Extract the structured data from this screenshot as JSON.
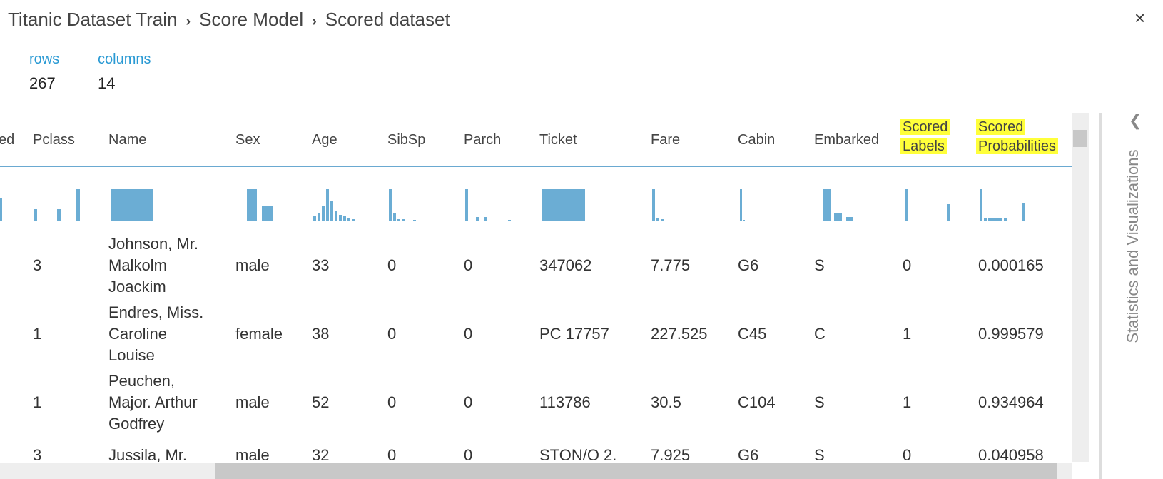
{
  "breadcrumb": [
    "Titanic Dataset Train",
    "Score Model",
    "Scored dataset"
  ],
  "close": "×",
  "stats": [
    {
      "label": "rows",
      "value": "267"
    },
    {
      "label": "columns",
      "value": "14"
    }
  ],
  "table": {
    "columns": [
      "ed",
      "Pclass",
      "Name",
      "Sex",
      "Age",
      "SibSp",
      "Parch",
      "Ticket",
      "Fare",
      "Cabin",
      "Embarked",
      "Scored Labels",
      "Scored Probabilities"
    ],
    "highlighted": [
      "Scored Labels",
      "Scored Probabilities"
    ],
    "rows": [
      [
        "",
        "3",
        "Johnson, Mr. Malkolm Joackim",
        "male",
        "33",
        "0",
        "0",
        "347062",
        "7.775",
        "G6",
        "S",
        "0",
        "0.000165"
      ],
      [
        "",
        "1",
        "Endres, Miss. Caroline Louise",
        "female",
        "38",
        "0",
        "0",
        "PC 17757",
        "227.525",
        "C45",
        "C",
        "1",
        "0.999579"
      ],
      [
        "",
        "1",
        "Peuchen, Major. Arthur Godfrey",
        "male",
        "52",
        "0",
        "0",
        "113786",
        "30.5",
        "C104",
        "S",
        "1",
        "0.934964"
      ],
      [
        "",
        "3",
        "Jussila, Mr.",
        "male",
        "32",
        "0",
        "0",
        "STON/O 2.",
        "7.925",
        "G6",
        "S",
        "0",
        "0.040958"
      ]
    ]
  },
  "side_panel": "Statistics and Visualizations"
}
